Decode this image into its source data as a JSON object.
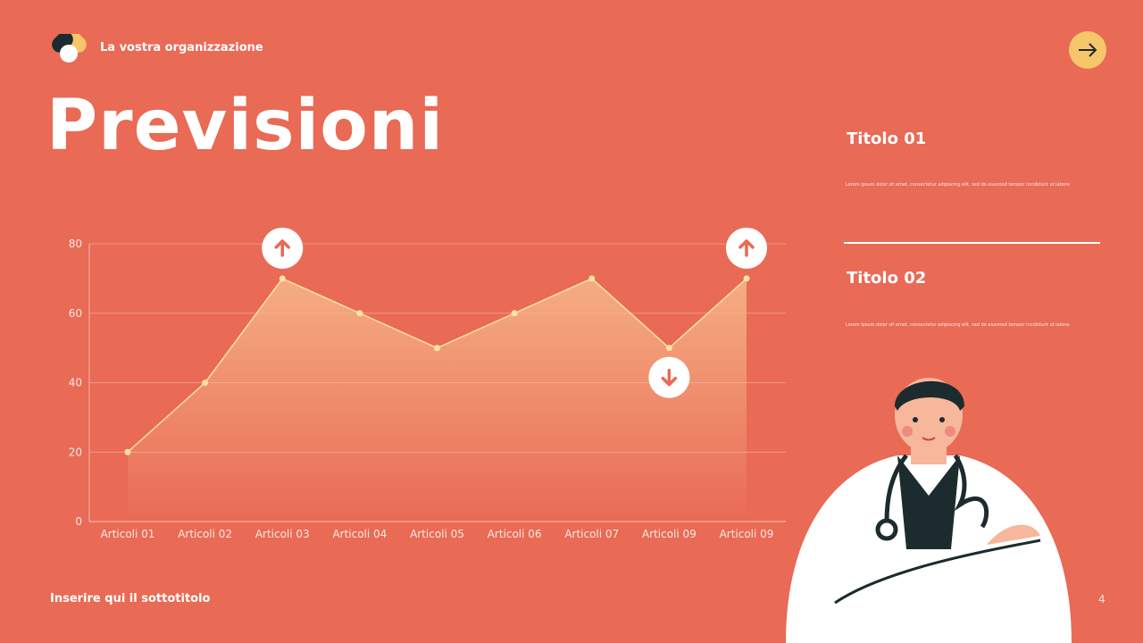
{
  "header": {
    "organization": "La vostra organizzazione",
    "next_icon": "arrow-right-icon"
  },
  "title": "Previsioni",
  "side": [
    {
      "title": "Titolo 01",
      "body": "Lorem ipsum dolor sit amet, consectetur adipiscing elit, sed do eiusmod tempor incididunt ut labore"
    },
    {
      "title": "Titolo 02",
      "body": "Lorem ipsum dolor sit amet, consectetur adipiscing elit, sed do eiusmod tempor incididunt ut labore"
    }
  ],
  "footer": {
    "subtitle": "Inserire qui il sottotitolo",
    "page": "4"
  },
  "colors": {
    "background": "#E96A55",
    "accent": "#F6C66A",
    "line": "#FCE3A0"
  },
  "chart_data": {
    "type": "area",
    "categories": [
      "Articoli 01",
      "Articoli 02",
      "Articoli 03",
      "Articoli 04",
      "Articoli 05",
      "Articoli 06",
      "Articoli 07",
      "Articoli 09",
      "Articoli 09"
    ],
    "values": [
      20,
      40,
      70,
      60,
      50,
      60,
      70,
      50,
      70
    ],
    "ylim": [
      0,
      80
    ],
    "yticks": [
      0,
      20,
      40,
      60,
      80
    ],
    "grid": true,
    "markers": [
      {
        "index": 2,
        "icon": "arrow-up-icon"
      },
      {
        "index": 7,
        "icon": "arrow-down-icon"
      },
      {
        "index": 8,
        "icon": "arrow-up-icon"
      }
    ]
  }
}
